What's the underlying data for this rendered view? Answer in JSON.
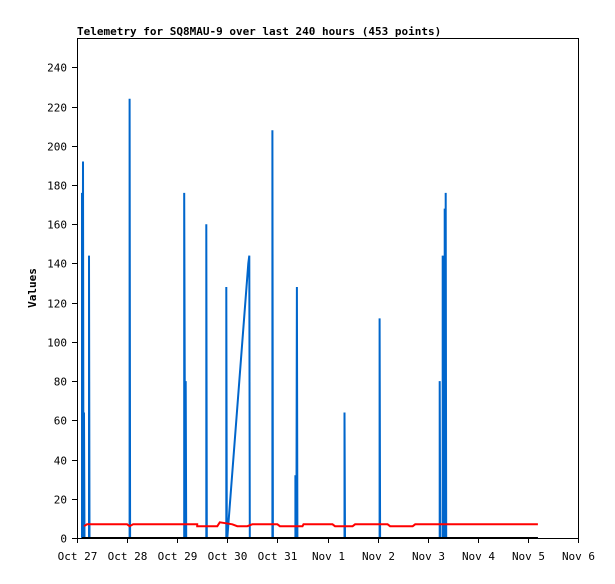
{
  "chart_data": {
    "type": "line",
    "title": "Telemetry for SQ8MAU-9 over last 240 hours (453 points)",
    "xlabel": "",
    "ylabel": "Values",
    "x_ticks": [
      "Oct 27",
      "Oct 28",
      "Oct 29",
      "Oct 30",
      "Oct 31",
      "Nov 1",
      "Nov 2",
      "Nov 3",
      "Nov 4",
      "Nov 5",
      "Nov 6"
    ],
    "x_range_days": [
      0,
      10
    ],
    "y_ticks": [
      0,
      20,
      40,
      60,
      80,
      100,
      120,
      140,
      160,
      180,
      200,
      220,
      240
    ],
    "ylim": [
      0,
      255
    ],
    "grid": false,
    "legend": "none",
    "series": [
      {
        "color": "#0066cc",
        "points": [
          [
            0.1,
            0
          ],
          [
            0.1,
            176
          ],
          [
            0.11,
            0
          ],
          [
            0.12,
            192
          ],
          [
            0.13,
            0
          ],
          [
            0.14,
            64
          ],
          [
            0.15,
            0
          ],
          [
            0.24,
            0
          ],
          [
            0.24,
            144
          ],
          [
            0.25,
            0
          ],
          [
            1.05,
            0
          ],
          [
            1.05,
            224
          ],
          [
            1.06,
            0
          ],
          [
            2.14,
            0
          ],
          [
            2.14,
            176
          ],
          [
            2.16,
            0
          ],
          [
            2.17,
            80
          ],
          [
            2.18,
            0
          ],
          [
            2.58,
            0
          ],
          [
            2.58,
            160
          ],
          [
            2.59,
            0
          ],
          [
            2.98,
            0
          ],
          [
            2.98,
            128
          ],
          [
            2.99,
            0
          ],
          [
            3.0,
            0
          ],
          [
            3.42,
            140
          ],
          [
            3.44,
            144
          ],
          [
            3.45,
            0
          ],
          [
            3.9,
            0
          ],
          [
            3.9,
            208
          ],
          [
            3.91,
            0
          ],
          [
            4.36,
            0
          ],
          [
            4.36,
            32
          ],
          [
            4.38,
            0
          ],
          [
            4.39,
            128
          ],
          [
            4.4,
            0
          ],
          [
            5.34,
            0
          ],
          [
            5.34,
            64
          ],
          [
            5.35,
            0
          ],
          [
            6.04,
            0
          ],
          [
            6.04,
            112
          ],
          [
            6.05,
            0
          ],
          [
            7.24,
            0
          ],
          [
            7.24,
            80
          ],
          [
            7.25,
            0
          ],
          [
            7.3,
            0
          ],
          [
            7.3,
            144
          ],
          [
            7.31,
            0
          ],
          [
            7.34,
            0
          ],
          [
            7.34,
            168
          ],
          [
            7.35,
            0
          ],
          [
            7.36,
            0
          ],
          [
            7.36,
            176
          ],
          [
            7.37,
            0
          ],
          [
            9.2,
            0
          ]
        ]
      },
      {
        "color": "#ff0000",
        "points": [
          [
            0.14,
            6
          ],
          [
            0.2,
            7
          ],
          [
            1.0,
            7
          ],
          [
            1.05,
            6
          ],
          [
            1.12,
            7
          ],
          [
            2.4,
            7
          ],
          [
            2.4,
            6
          ],
          [
            2.8,
            6
          ],
          [
            2.85,
            8
          ],
          [
            3.1,
            7
          ],
          [
            3.2,
            6
          ],
          [
            3.4,
            6
          ],
          [
            3.5,
            7
          ],
          [
            4.0,
            7
          ],
          [
            4.05,
            6
          ],
          [
            4.5,
            6
          ],
          [
            4.52,
            7
          ],
          [
            5.1,
            7
          ],
          [
            5.15,
            6
          ],
          [
            5.5,
            6
          ],
          [
            5.55,
            7
          ],
          [
            6.2,
            7
          ],
          [
            6.25,
            6
          ],
          [
            6.7,
            6
          ],
          [
            6.75,
            7
          ],
          [
            9.2,
            7
          ]
        ]
      },
      {
        "color": "#000000",
        "points": [
          [
            0.1,
            0
          ],
          [
            9.2,
            0
          ]
        ]
      }
    ]
  }
}
